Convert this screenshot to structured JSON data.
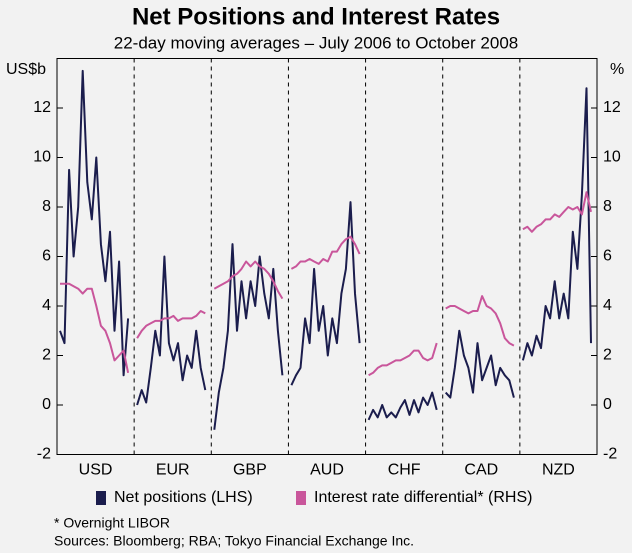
{
  "chart_data": {
    "type": "line",
    "title": "Net Positions and Interest Rates",
    "subtitle": "22-day moving averages – July 2006 to October 2008",
    "ylabel": "US$b",
    "y2label": "%",
    "ylim": [
      -2,
      14
    ],
    "yticks": [
      -2,
      0,
      2,
      4,
      6,
      8,
      10,
      12
    ],
    "y2lim": [
      -2,
      14
    ],
    "y2ticks": [
      -2,
      0,
      2,
      4,
      6,
      8,
      10,
      12
    ],
    "series": [
      {
        "name": "Net positions (LHS)",
        "color": "#1b1d4d"
      },
      {
        "name": "Interest rate differential* (RHS)",
        "color": "#c9569b",
        "axis": "y2"
      }
    ],
    "panels": [
      {
        "category": "USD",
        "values": [
          [
            3,
            2.5,
            9.5,
            6,
            8,
            13.5,
            9,
            7.5,
            10,
            6.5,
            5,
            7,
            3,
            5.8,
            1.2,
            3.5
          ],
          [
            4.9,
            4.9,
            4.9,
            4.8,
            4.7,
            4.5,
            4.7,
            4.7,
            4,
            3.2,
            3,
            2.5,
            1.8,
            2,
            2.2,
            1.3
          ]
        ]
      },
      {
        "category": "EUR",
        "values": [
          [
            0,
            0.6,
            0.1,
            1.5,
            3,
            2,
            6,
            2.5,
            1.8,
            2.5,
            1,
            2,
            1.5,
            3,
            1.5,
            0.6
          ],
          [
            2.7,
            3,
            3.2,
            3.3,
            3.4,
            3.4,
            3.5,
            3.5,
            3.6,
            3.4,
            3.5,
            3.5,
            3.5,
            3.6,
            3.8,
            3.7
          ]
        ]
      },
      {
        "category": "GBP",
        "values": [
          [
            -1,
            0.5,
            1.5,
            3,
            6.5,
            3,
            5,
            3.5,
            5,
            4,
            6,
            4.5,
            3.5,
            5.5,
            3,
            1.2
          ],
          [
            4.7,
            4.8,
            4.9,
            5,
            5.2,
            5.3,
            5.5,
            5.8,
            5.6,
            5.8,
            5.6,
            5.5,
            5.3,
            5,
            4.6,
            4.3
          ]
        ]
      },
      {
        "category": "AUD",
        "values": [
          [
            0.8,
            1.2,
            1.5,
            3.5,
            2.5,
            5.5,
            3,
            4,
            2,
            3.5,
            2.5,
            4.5,
            5.5,
            8.2,
            4.5,
            2.5
          ],
          [
            5.5,
            5.6,
            5.8,
            5.8,
            5.9,
            5.8,
            5.7,
            5.9,
            5.8,
            6.2,
            6.2,
            6.5,
            6.7,
            6.8,
            6.5,
            6.1
          ]
        ]
      },
      {
        "category": "CHF",
        "values": [
          [
            -0.6,
            -0.2,
            -0.5,
            0,
            -0.5,
            -0.3,
            -0.5,
            -0.1,
            0.2,
            -0.4,
            0.2,
            -0.3,
            0.3,
            0,
            0.5,
            -0.2
          ],
          [
            1.2,
            1.3,
            1.5,
            1.6,
            1.6,
            1.7,
            1.8,
            1.8,
            1.9,
            2,
            2.2,
            2.2,
            1.9,
            1.8,
            1.9,
            2.5
          ]
        ]
      },
      {
        "category": "CAD",
        "values": [
          [
            0.5,
            0.3,
            1.5,
            3,
            2,
            1.5,
            0.5,
            2.5,
            1,
            1.5,
            2,
            0.8,
            1.5,
            1.2,
            1,
            0.3
          ],
          [
            3.9,
            4,
            4,
            3.9,
            3.8,
            3.7,
            3.8,
            3.8,
            4.4,
            4,
            3.9,
            3.7,
            3.3,
            2.7,
            2.5,
            2.4
          ]
        ]
      },
      {
        "category": "NZD",
        "values": [
          [
            1.8,
            2.5,
            2,
            2.8,
            2.3,
            4,
            3.5,
            5,
            3.5,
            4.5,
            3.5,
            7,
            5.5,
            8.5,
            12.8,
            2.5
          ],
          [
            7.1,
            7.2,
            7,
            7.2,
            7.3,
            7.5,
            7.5,
            7.7,
            7.6,
            7.8,
            8,
            7.9,
            8,
            7.7,
            8.6,
            7.8
          ]
        ]
      }
    ],
    "footnote": "*    Overnight LIBOR",
    "source": "Sources: Bloomberg; RBA; Tokyo Financial Exchange Inc."
  }
}
